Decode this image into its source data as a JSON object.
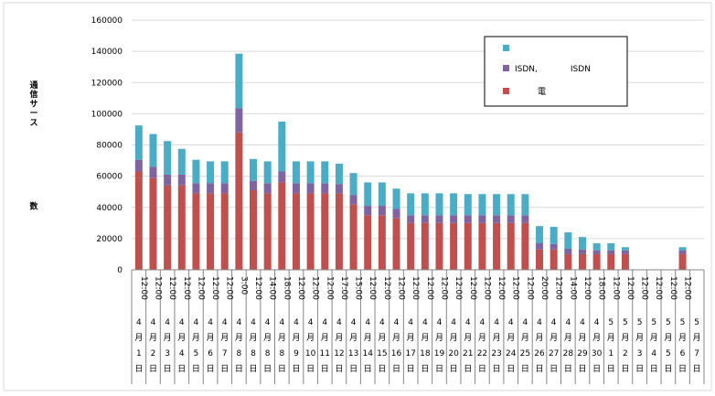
{
  "chart_data": {
    "type": "bar",
    "stacked": true,
    "ylim": [
      0,
      160000
    ],
    "yticks": [
      0,
      20000,
      40000,
      60000,
      80000,
      100000,
      120000,
      140000,
      160000
    ],
    "ylabel_lines": [
      "通",
      "信",
      "サ",
      "ー",
      "ス",
      "",
      "",
      "",
      "",
      "",
      "",
      "",
      "",
      "数"
    ],
    "grid": true,
    "legend_position": "top-right",
    "series": [
      {
        "name": "電",
        "color": "#c0504d",
        "values": [
          63000,
          59000,
          54000,
          54000,
          49000,
          49000,
          49000,
          88000,
          51000,
          49000,
          56000,
          49000,
          49000,
          49000,
          49000,
          42000,
          35000,
          35000,
          33000,
          30000,
          30000,
          30000,
          30000,
          30000,
          30000,
          30000,
          30000,
          30000,
          13000,
          13000,
          10000,
          10000,
          10000,
          10000,
          10000,
          0,
          0,
          0,
          10000,
          0
        ]
      },
      {
        "name": "ISDN,　　　　ISDN",
        "color": "#8064a2",
        "values": [
          7500,
          7000,
          7000,
          7000,
          6500,
          6500,
          6500,
          15500,
          6000,
          6500,
          7000,
          6500,
          6500,
          6500,
          6000,
          6000,
          6000,
          6000,
          6000,
          5000,
          5000,
          5000,
          5000,
          5000,
          5000,
          5000,
          5000,
          5000,
          4000,
          3500,
          3500,
          3000,
          2500,
          2500,
          2500,
          0,
          0,
          0,
          2500,
          0
        ]
      },
      {
        "name": "",
        "color": "#4bacc6",
        "values": [
          22000,
          21000,
          21500,
          16500,
          15000,
          14000,
          14000,
          35000,
          14000,
          14000,
          32000,
          14000,
          14000,
          14000,
          13000,
          14000,
          15000,
          15000,
          13000,
          14000,
          14000,
          14000,
          14000,
          13500,
          13500,
          13500,
          13500,
          13500,
          11000,
          11000,
          10500,
          8000,
          4500,
          4500,
          2000,
          0,
          0,
          0,
          2000,
          0
        ]
      }
    ],
    "time_labels": [
      "12:00",
      "12:00",
      "12:00",
      "12:00",
      "12:00",
      "12:00",
      "12:00",
      "3:00",
      "12:00",
      "14:00",
      "18:00",
      "12:00",
      "12:00",
      "12:00",
      "17:00",
      "15:00",
      "12:00",
      "12:00",
      "12:00",
      "12:00",
      "12:00",
      "12:00",
      "12:00",
      "12:00",
      "12:00",
      "12:00",
      "12:00",
      "12:00",
      "20:00",
      "12:00",
      "14:00",
      "12:00",
      "18:00",
      "12:00",
      "12:00",
      "12:00",
      "12:00",
      "12:00",
      "12:00",
      ""
    ],
    "date_labels": [
      [
        "4",
        "月",
        "1",
        "日"
      ],
      [
        "4",
        "月",
        "2",
        "日"
      ],
      [
        "4",
        "月",
        "3",
        "日"
      ],
      [
        "4",
        "月",
        "4",
        "日"
      ],
      [
        "4",
        "月",
        "5",
        "日"
      ],
      [
        "4",
        "月",
        "6",
        "日"
      ],
      [
        "4",
        "月",
        "7",
        "日"
      ],
      [
        "4",
        "月",
        "8",
        "日"
      ],
      [
        "4",
        "月",
        "8",
        "日"
      ],
      [
        "4",
        "月",
        "8",
        "日"
      ],
      [
        "4",
        "月",
        "8",
        "日"
      ],
      [
        "4",
        "月",
        "9",
        "日"
      ],
      [
        "4",
        "月",
        "10",
        "日"
      ],
      [
        "4",
        "月",
        "11",
        "日"
      ],
      [
        "4",
        "月",
        "12",
        "日"
      ],
      [
        "4",
        "月",
        "13",
        "日"
      ],
      [
        "4",
        "月",
        "14",
        "日"
      ],
      [
        "4",
        "月",
        "15",
        "日"
      ],
      [
        "4",
        "月",
        "16",
        "日"
      ],
      [
        "4",
        "月",
        "17",
        "日"
      ],
      [
        "4",
        "月",
        "18",
        "日"
      ],
      [
        "4",
        "月",
        "19",
        "日"
      ],
      [
        "4",
        "月",
        "20",
        "日"
      ],
      [
        "4",
        "月",
        "21",
        "日"
      ],
      [
        "4",
        "月",
        "22",
        "日"
      ],
      [
        "4",
        "月",
        "23",
        "日"
      ],
      [
        "4",
        "月",
        "24",
        "日"
      ],
      [
        "4",
        "月",
        "25",
        "日"
      ],
      [
        "4",
        "月",
        "26",
        "日"
      ],
      [
        "4",
        "月",
        "27",
        "日"
      ],
      [
        "4",
        "月",
        "28",
        "日"
      ],
      [
        "4",
        "月",
        "29",
        "日"
      ],
      [
        "4",
        "月",
        "30",
        "日"
      ],
      [
        "5",
        "月",
        "1",
        "日"
      ],
      [
        "5",
        "月",
        "2",
        "日"
      ],
      [
        "5",
        "月",
        "3",
        "日"
      ],
      [
        "5",
        "月",
        "4",
        "日"
      ],
      [
        "5",
        "月",
        "5",
        "日"
      ],
      [
        "5",
        "月",
        "6",
        "日"
      ],
      [
        "5",
        "月",
        "7",
        "日"
      ]
    ]
  }
}
